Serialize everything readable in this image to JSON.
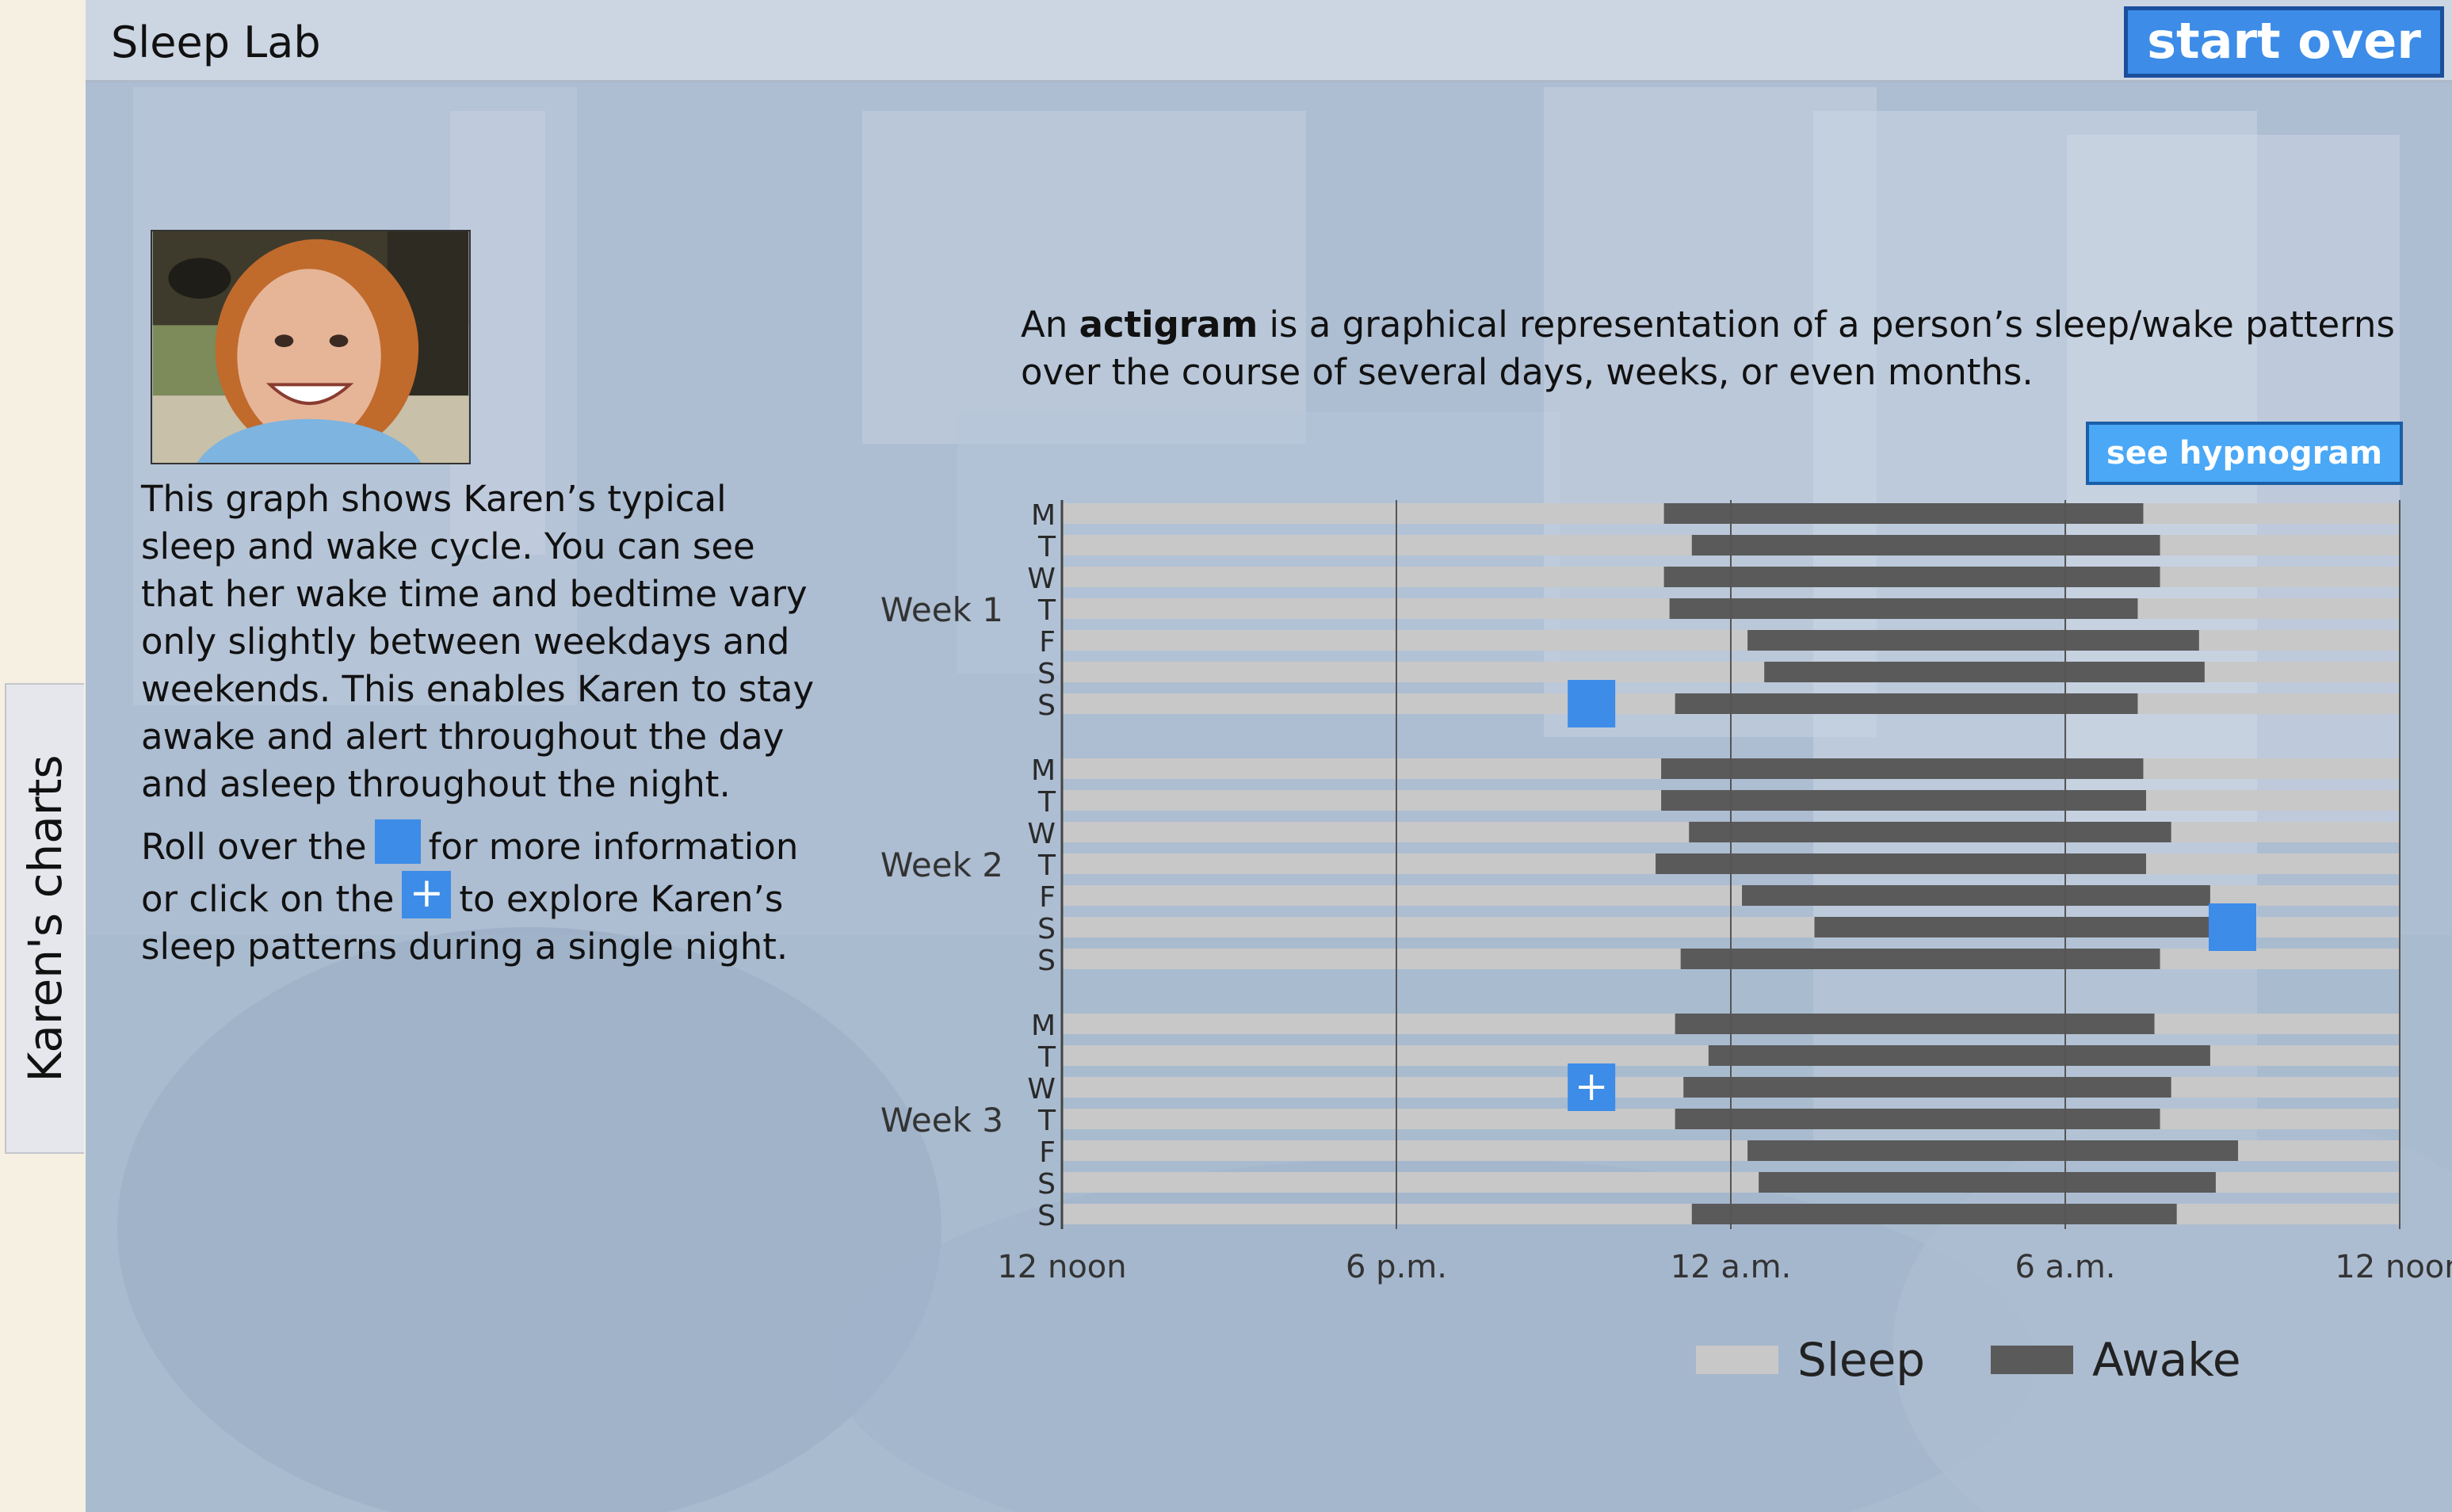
{
  "app": {
    "title": "Sleep Lab",
    "start_over_label": "start over"
  },
  "side_tab": {
    "label": "Karen's charts"
  },
  "intro": {
    "prefix": "An ",
    "term": "actigram",
    "suffix": " is a graphical representation of a person’s sleep/wake patterns over the course of several days, weeks, or even months."
  },
  "see_hypnogram_label": "see hypnogram",
  "description": {
    "main": "This graph shows Karen’s typical sleep and wake cycle. You can see that her wake time and bedtime vary only slightly between weekdays and weekends. This enables Karen to stay awake and alert throughout the day and asleep throughout the night.",
    "rollover_a": "Roll over the",
    "rollover_b": "for more information or click on the",
    "rollover_c": "to explore Karen’s sleep patterns during a single night."
  },
  "colors": {
    "accent": "#3c8ce8",
    "sleep": "#c8c8c8",
    "awake": "#5a5a5a",
    "hypnogram_button": "#4aa8f6"
  },
  "icons": {
    "info_marker": "blue-square-icon",
    "explore_marker": "plus-icon"
  },
  "chart_data": {
    "type": "bar",
    "orientation": "horizontal",
    "x_ticks": [
      "12 noon",
      "6 p.m.",
      "12 a.m.",
      "6 a.m.",
      "12 noon"
    ],
    "x_range_hours_after_noon": [
      0,
      24
    ],
    "legend": [
      {
        "name": "Sleep",
        "color": "#c8c8c8"
      },
      {
        "name": "Awake",
        "color": "#5a5a5a"
      }
    ],
    "legend_position": "bottom-right",
    "weeks": [
      {
        "label": "Week 1",
        "days": [
          {
            "day": "M",
            "start": 10.8,
            "end": 19.4
          },
          {
            "day": "T",
            "start": 11.3,
            "end": 19.7
          },
          {
            "day": "W",
            "start": 10.8,
            "end": 19.7
          },
          {
            "day": "T",
            "start": 10.9,
            "end": 19.3
          },
          {
            "day": "F",
            "start": 12.3,
            "end": 20.4
          },
          {
            "day": "S",
            "start": 12.6,
            "end": 20.5
          },
          {
            "day": "S",
            "start": 11.0,
            "end": 19.3
          }
        ]
      },
      {
        "label": "Week 2",
        "days": [
          {
            "day": "M",
            "start": 10.75,
            "end": 19.4
          },
          {
            "day": "T",
            "start": 10.75,
            "end": 19.45
          },
          {
            "day": "W",
            "start": 11.25,
            "end": 19.9
          },
          {
            "day": "T",
            "start": 10.65,
            "end": 19.45
          },
          {
            "day": "F",
            "start": 12.2,
            "end": 20.6
          },
          {
            "day": "S",
            "start": 13.5,
            "end": 20.7
          },
          {
            "day": "S",
            "start": 11.1,
            "end": 19.7
          }
        ]
      },
      {
        "label": "Week 3",
        "days": [
          {
            "day": "M",
            "start": 11.0,
            "end": 19.6
          },
          {
            "day": "T",
            "start": 11.6,
            "end": 20.6
          },
          {
            "day": "W",
            "start": 11.15,
            "end": 19.9
          },
          {
            "day": "T",
            "start": 11.0,
            "end": 19.7
          },
          {
            "day": "F",
            "start": 12.3,
            "end": 21.1
          },
          {
            "day": "S",
            "start": 12.5,
            "end": 20.7
          },
          {
            "day": "S",
            "start": 11.3,
            "end": 20.0
          }
        ]
      }
    ],
    "markers": [
      {
        "kind": "info",
        "week": 0,
        "day": 6,
        "at": 9.5
      },
      {
        "kind": "info",
        "week": 1,
        "day": 5,
        "at": 21.0
      },
      {
        "kind": "explore",
        "week": 2,
        "day": 2,
        "at": 9.5
      }
    ]
  }
}
